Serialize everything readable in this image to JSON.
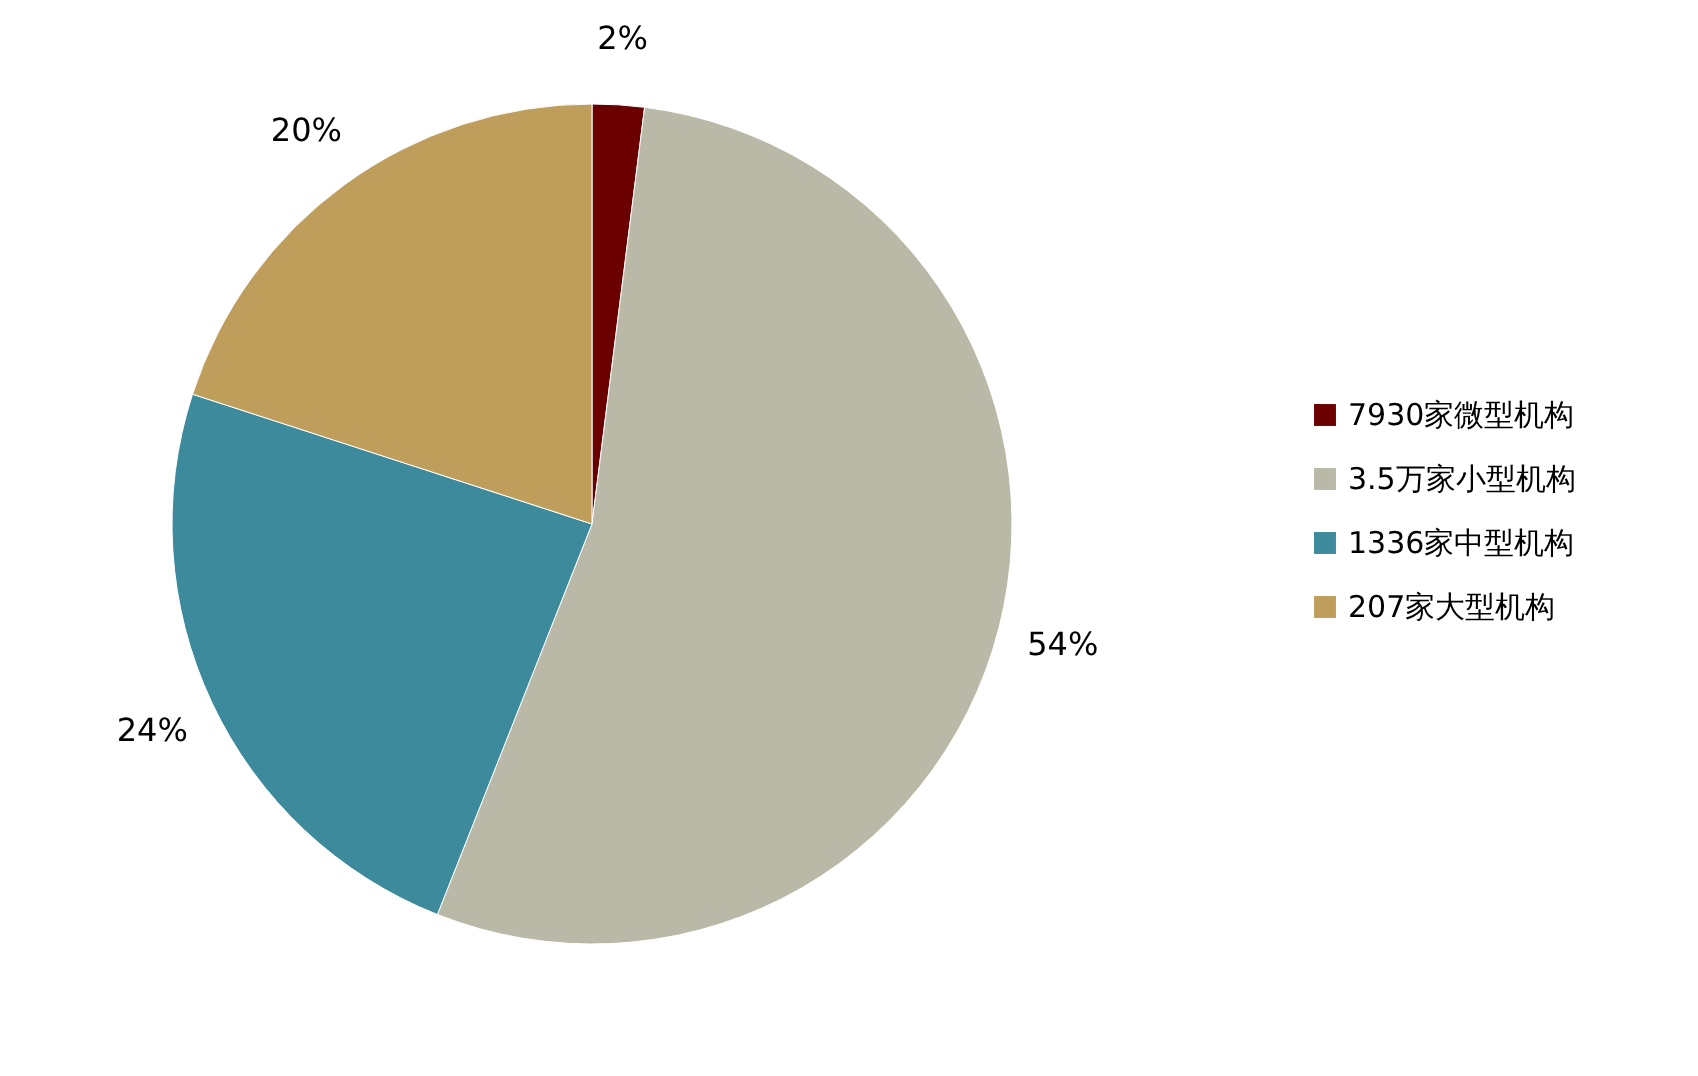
{
  "chart_data": {
    "type": "pie",
    "categories": [
      "7930家微型机构",
      "3.5万家小型机构",
      "1336家中型机构",
      "207家大型机构"
    ],
    "values": [
      2,
      54,
      24,
      20
    ],
    "colors": [
      "#6b0000",
      "#bab8a6",
      "#3c8a9c",
      "#bf9e5c"
    ],
    "value_labels": [
      "2%",
      "54%",
      "24%",
      "20%"
    ],
    "legend": "right"
  }
}
